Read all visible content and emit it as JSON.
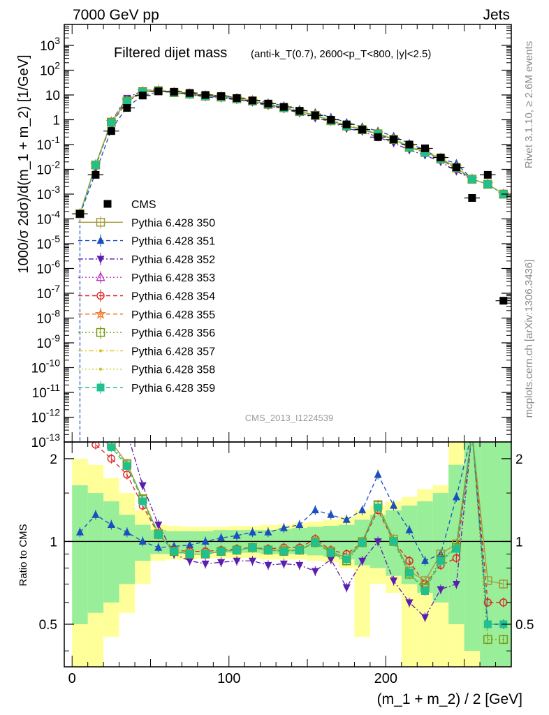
{
  "header": {
    "energy_label": "7000 GeV pp",
    "category_label": "Jets",
    "title_main": "Filtered dijet mass",
    "title_detail": "(anti-k_T(0.7), 2600<p_T<800, |y|<2.5)",
    "analysis_id": "CMS_2013_I1224539",
    "side_rivet": "Rivet 3.1.10, ≥ 2.6M events",
    "side_mcplots": "mcplots.cern.ch [arXiv:1306.3436]"
  },
  "chart_data": [
    {
      "panel": "main",
      "type": "scatter",
      "xlabel": "(m_1 + m_2) / 2 [GeV]",
      "ylabel": "1000/σ 2dσ)/d(m_1 + m_2) [1/GeV]",
      "ylog": true,
      "xlim": [
        -5,
        280
      ],
      "ylim": [
        1e-13,
        7000
      ],
      "ytick_exponents": [
        -13,
        -12,
        -11,
        -10,
        -9,
        -8,
        -7,
        -6,
        -5,
        -4,
        -3,
        -2,
        -1,
        0,
        1,
        2,
        3
      ],
      "ytick_labels": [
        "10^-13",
        "10^-12",
        "10^-11",
        "10^-10",
        "10^-9",
        "10^-8",
        "10^-7",
        "10^-6",
        "10^-5",
        "10^-4",
        "10^-3",
        "10^-2",
        "10^-1",
        "1",
        "10",
        "10^2",
        "10^3"
      ],
      "x": [
        5,
        15,
        25,
        35,
        45,
        55,
        65,
        75,
        85,
        95,
        105,
        115,
        125,
        135,
        145,
        155,
        165,
        175,
        185,
        195,
        205,
        215,
        225,
        235,
        245,
        255,
        265,
        275
      ],
      "cms": [
        0.00016,
        0.006,
        0.35,
        3.0,
        9.5,
        14.0,
        13.5,
        12.0,
        10.0,
        9.0,
        7.5,
        6.0,
        4.5,
        3.3,
        2.3,
        1.5,
        1.0,
        0.65,
        0.4,
        0.2,
        0.16,
        0.1,
        0.07,
        0.03,
        0.012,
        0.0007,
        0.006,
        5e-08
      ],
      "series": [
        {
          "name": "CMS",
          "color": "#000000",
          "marker": "square-filled",
          "dash": "none"
        },
        {
          "name": "Pythia 6.428 350",
          "color": "#a09a3a",
          "marker": "square-open",
          "dash": "solid"
        },
        {
          "name": "Pythia 6.428 351",
          "color": "#1a4fc0",
          "marker": "triangle-up-filled",
          "dash": "dashed"
        },
        {
          "name": "Pythia 6.428 352",
          "color": "#5b1fb0",
          "marker": "triangle-down-filled",
          "dash": "dashdot"
        },
        {
          "name": "Pythia 6.428 353",
          "color": "#c030c0",
          "marker": "triangle-up-open",
          "dash": "dotted"
        },
        {
          "name": "Pythia 6.428 354",
          "color": "#e02020",
          "marker": "circle-open",
          "dash": "dashed"
        },
        {
          "name": "Pythia 6.428 355",
          "color": "#f07020",
          "marker": "star-open",
          "dash": "dashed"
        },
        {
          "name": "Pythia 6.428 356",
          "color": "#7a9a10",
          "marker": "square-open",
          "dash": "dotted"
        },
        {
          "name": "Pythia 6.428 357",
          "color": "#e0c020",
          "marker": "dot",
          "dash": "dashdot"
        },
        {
          "name": "Pythia 6.428 358",
          "color": "#c8c820",
          "marker": "dot",
          "dash": "dotted"
        },
        {
          "name": "Pythia 6.428 359",
          "color": "#20c090",
          "marker": "square-filled",
          "dash": "dashed"
        }
      ],
      "legend_placement": "center-left"
    },
    {
      "panel": "ratio",
      "type": "line",
      "ylabel": "Ratio to CMS",
      "xlim": [
        -5,
        280
      ],
      "ylim": [
        0.35,
        2.3
      ],
      "ylog": true,
      "yticks": [
        0.5,
        1,
        2
      ],
      "ytick_labels": [
        "0.5",
        "1",
        "2"
      ],
      "xticks": [
        0,
        100,
        200
      ],
      "xtick_labels": [
        "0",
        "100",
        "200"
      ],
      "x": [
        5,
        15,
        25,
        35,
        45,
        55,
        65,
        75,
        85,
        95,
        105,
        115,
        125,
        135,
        145,
        155,
        165,
        175,
        185,
        195,
        205,
        215,
        225,
        235,
        245,
        255,
        265,
        275
      ],
      "band_inner": [
        [
          0.5,
          1.6
        ],
        [
          0.55,
          1.5
        ],
        [
          0.6,
          1.4
        ],
        [
          0.7,
          1.25
        ],
        [
          0.85,
          1.15
        ],
        [
          0.9,
          1.1
        ],
        [
          0.9,
          1.09
        ],
        [
          0.91,
          1.09
        ],
        [
          0.91,
          1.09
        ],
        [
          0.91,
          1.1
        ],
        [
          0.91,
          1.1
        ],
        [
          0.91,
          1.1
        ],
        [
          0.9,
          1.1
        ],
        [
          0.9,
          1.11
        ],
        [
          0.9,
          1.12
        ],
        [
          0.89,
          1.13
        ],
        [
          0.88,
          1.14
        ],
        [
          0.86,
          1.15
        ],
        [
          0.82,
          1.2
        ],
        [
          0.8,
          1.25
        ],
        [
          0.75,
          1.3
        ],
        [
          0.7,
          1.35
        ],
        [
          0.65,
          1.4
        ],
        [
          0.6,
          1.5
        ],
        [
          0.5,
          1.9
        ],
        [
          0.4,
          2.5
        ],
        [
          0.35,
          2.5
        ],
        [
          0.35,
          2.5
        ]
      ],
      "band_outer": [
        [
          0.35,
          2.0
        ],
        [
          0.35,
          1.9
        ],
        [
          0.45,
          1.7
        ],
        [
          0.55,
          1.5
        ],
        [
          0.7,
          1.3
        ],
        [
          0.85,
          1.15
        ],
        [
          0.86,
          1.14
        ],
        [
          0.86,
          1.13
        ],
        [
          0.87,
          1.13
        ],
        [
          0.87,
          1.13
        ],
        [
          0.87,
          1.14
        ],
        [
          0.87,
          1.14
        ],
        [
          0.86,
          1.15
        ],
        [
          0.86,
          1.15
        ],
        [
          0.86,
          1.17
        ],
        [
          0.85,
          1.18
        ],
        [
          0.84,
          1.2
        ],
        [
          0.8,
          1.23
        ],
        [
          0.45,
          1.3
        ],
        [
          0.7,
          1.35
        ],
        [
          0.65,
          1.4
        ],
        [
          0.35,
          1.45
        ],
        [
          0.35,
          1.55
        ],
        [
          0.35,
          1.6
        ],
        [
          0.35,
          2.5
        ],
        [
          0.35,
          2.5
        ],
        [
          0.35,
          2.5
        ],
        [
          0.35,
          2.5
        ]
      ],
      "series": [
        {
          "name": "Pythia 6.428 351",
          "values": [
            1.08,
            1.25,
            1.15,
            1.08,
            1.0,
            0.95,
            0.96,
            0.97,
            1.0,
            1.03,
            1.05,
            1.08,
            1.08,
            1.12,
            1.15,
            1.3,
            1.25,
            1.2,
            1.3,
            1.75,
            1.35,
            1.1,
            0.85,
            0.9,
            1.45,
            2.5,
            0.5,
            0.5
          ]
        },
        {
          "name": "Pythia 6.428 352",
          "values": [
            2.5,
            2.5,
            2.5,
            2.5,
            1.6,
            1.15,
            0.9,
            0.85,
            0.83,
            0.84,
            0.85,
            0.85,
            0.82,
            0.83,
            0.82,
            0.78,
            0.86,
            0.68,
            0.85,
            1.0,
            0.72,
            0.6,
            0.53,
            0.67,
            0.7,
            2.5,
            0.5,
            0.5
          ]
        },
        {
          "name": "Pythia 6.428 354",
          "values": [
            2.5,
            2.25,
            2.0,
            1.75,
            1.35,
            1.06,
            0.93,
            0.92,
            0.92,
            0.93,
            0.94,
            0.95,
            0.94,
            0.95,
            0.95,
            1.02,
            0.93,
            0.9,
            0.99,
            1.3,
            1.0,
            0.85,
            0.7,
            0.82,
            0.87,
            2.5,
            0.6,
            0.6
          ]
        },
        {
          "name": "Pythia 6.428 350",
          "values": [
            2.5,
            2.5,
            2.3,
            1.92,
            1.43,
            1.07,
            0.92,
            0.9,
            0.9,
            0.92,
            0.93,
            0.95,
            0.93,
            0.93,
            0.93,
            1.0,
            0.92,
            0.87,
            1.0,
            1.35,
            1.02,
            0.78,
            0.72,
            0.9,
            0.98,
            2.5,
            0.72,
            0.7
          ]
        },
        {
          "name": "Pythia 6.428 356",
          "values": [
            2.5,
            2.5,
            2.25,
            1.9,
            1.42,
            1.06,
            0.92,
            0.9,
            0.9,
            0.92,
            0.93,
            0.95,
            0.93,
            0.92,
            0.93,
            0.99,
            0.91,
            0.85,
            0.99,
            1.36,
            1.0,
            0.76,
            0.68,
            0.86,
            0.95,
            2.5,
            0.44,
            0.44
          ]
        },
        {
          "name": "Pythia 6.428 359",
          "values": [
            2.5,
            2.5,
            2.2,
            1.88,
            1.4,
            1.06,
            0.92,
            0.9,
            0.9,
            0.92,
            0.93,
            0.95,
            0.93,
            0.92,
            0.93,
            0.99,
            0.91,
            0.86,
            0.99,
            1.33,
            1.0,
            0.77,
            0.66,
            0.85,
            0.94,
            2.5,
            0.5,
            0.5
          ]
        }
      ]
    }
  ]
}
